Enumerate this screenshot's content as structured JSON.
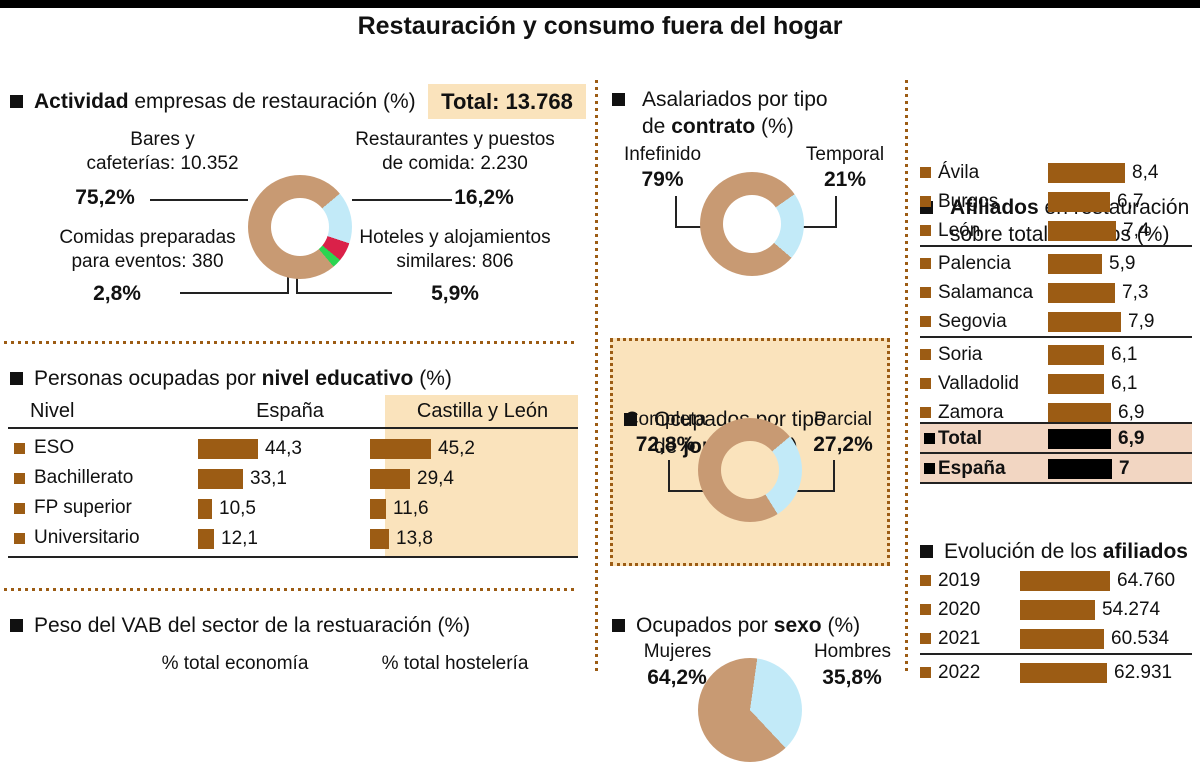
{
  "title": "Restauración y consumo fuera del hogar",
  "colors": {
    "bar_brown": "#9C5C14",
    "donut_tan": "#C89A73",
    "light_blue": "#C2EAF8",
    "red": "#DA2149",
    "green": "#2BD551",
    "cream": "#FAE3BC",
    "pink": "#F2D6C2",
    "black": "#000000"
  },
  "left": {
    "actividad": {
      "header_bold": "Actividad",
      "header_rest": " empresas de restauración (%)",
      "total_label": "Total: 13.768",
      "donut": {
        "from": 50,
        "slices": [
          {
            "name": "Restaurantes y puestos de comida",
            "color": "#C2EAF8",
            "pct": 16.2
          },
          {
            "name": "Hoteles y alojamientos similares",
            "color": "#DA2149",
            "pct": 5.9
          },
          {
            "name": "Comidas preparadas para eventos",
            "color": "#2BD551",
            "pct": 2.8
          },
          {
            "name": "Bares y cafeterías",
            "color": "#C89A73",
            "pct": 75.2
          }
        ]
      },
      "labels": {
        "bares_l1": "Bares y",
        "bares_l2": "cafeterías: 10.352",
        "bares_pct": "75,2%",
        "rest_l1": "Restaurantes y puestos",
        "rest_l2": "de comida: 2.230",
        "rest_pct": "16,2%",
        "comidas_l1": "Comidas preparadas",
        "comidas_l2": "para eventos: 380",
        "comidas_pct": "2,8%",
        "hoteles_l1": "Hoteles y alojamientos",
        "hoteles_l2": "similares: 806",
        "hoteles_pct": "5,9%"
      }
    },
    "educativo": {
      "header_pre": "Personas ocupadas por ",
      "header_bold": "nivel educativo",
      "header_post": " (%)",
      "col_nivel": "Nivel",
      "col_espana": "España",
      "col_cyl": "Castilla y León",
      "rows": [
        {
          "label": "ESO",
          "espana": "44,3",
          "espana_num": 44.3,
          "cyl": "45,2",
          "cyl_num": 45.2
        },
        {
          "label": "Bachillerato",
          "espana": "33,1",
          "espana_num": 33.1,
          "cyl": "29,4",
          "cyl_num": 29.4
        },
        {
          "label": "FP superior",
          "espana": "10,5",
          "espana_num": 10.5,
          "cyl": "11,6",
          "cyl_num": 11.6
        },
        {
          "label": "Universitario",
          "espana": "12,1",
          "espana_num": 12.1,
          "cyl": "13,8",
          "cyl_num": 13.8
        }
      ]
    },
    "vab": {
      "header": "Peso del VAB del sector de la restuaración (%)",
      "col1": "% total economía",
      "col2": "% total hostelería"
    }
  },
  "middle": {
    "contrato": {
      "header_l1": "Asalariados por tipo",
      "header_l2_pre": "de ",
      "header_l2_bold": "contrato",
      "header_l2_post": " (%)",
      "left_label": "Infefinido",
      "left_pct": "79%",
      "right_label": "Temporal",
      "right_pct": "21%",
      "donut": {
        "from": 55,
        "slices": [
          {
            "name": "Temporal",
            "color": "#C2EAF8",
            "pct": 21
          },
          {
            "name": "Infefinido",
            "color": "#C89A73",
            "pct": 79
          }
        ]
      }
    },
    "jornada": {
      "header_l1": "Ocupados por tipo",
      "header_l2_pre": "de ",
      "header_l2_bold": "jornada",
      "header_l2_post": " (%)",
      "left_label": "Completa",
      "left_pct": "72,8%",
      "right_label": "Parcial",
      "right_pct": "27,2%",
      "donut": {
        "from": 50,
        "slices": [
          {
            "name": "Parcial",
            "color": "#C2EAF8",
            "pct": 27.2
          },
          {
            "name": "Completa",
            "color": "#C89A73",
            "pct": 72.8
          }
        ]
      }
    },
    "sexo": {
      "header_pre": "Ocupados por ",
      "header_bold": "sexo",
      "header_post": " (%)",
      "left_label": "Mujeres",
      "left_pct": "64,2%",
      "right_label": "Hombres",
      "right_pct": "35,8%",
      "donut": {
        "from": 8,
        "slices": [
          {
            "name": "Hombres",
            "color": "#C2EAF8",
            "pct": 35.8
          },
          {
            "name": "Mujeres",
            "color": "#C89A73",
            "pct": 64.2
          }
        ]
      }
    }
  },
  "right": {
    "afiliados": {
      "header_l1_bold": "Afiliados",
      "header_l1_post": " en restauración",
      "header_l2": "sobre total afiliados (%)",
      "rows": [
        {
          "label": "Ávila",
          "value": "8,4",
          "num": 8.4
        },
        {
          "label": "Burgos",
          "value": "6,7",
          "num": 6.7
        },
        {
          "label": "León",
          "value": "7,4",
          "num": 7.4
        },
        {
          "label": "Palencia",
          "value": "5,9",
          "num": 5.9
        },
        {
          "label": "Salamanca",
          "value": "7,3",
          "num": 7.3
        },
        {
          "label": "Segovia",
          "value": "7,9",
          "num": 7.9
        },
        {
          "label": "Soria",
          "value": "6,1",
          "num": 6.1
        },
        {
          "label": "Valladolid",
          "value": "6,1",
          "num": 6.1
        },
        {
          "label": "Zamora",
          "value": "6,9",
          "num": 6.9
        }
      ],
      "total_row": {
        "label": "Total",
        "value": "6,9",
        "num": 6.9
      },
      "espana_row": {
        "label": "España",
        "value": "7",
        "num": 7
      }
    },
    "evolucion": {
      "header_pre": "Evolución de los ",
      "header_bold": "afiliados",
      "rows": [
        {
          "label": "2019",
          "value": "64.760",
          "num": 64760
        },
        {
          "label": "2020",
          "value": "54.274",
          "num": 54274
        },
        {
          "label": "2021",
          "value": "60.534",
          "num": 60534
        },
        {
          "label": "2022",
          "value": "62.931",
          "num": 62931
        }
      ]
    }
  },
  "chart_data": [
    {
      "type": "pie",
      "title": "Actividad empresas de restauración (%)",
      "total": 13768,
      "categories": [
        "Bares y cafeterías",
        "Restaurantes y puestos de comida",
        "Hoteles y alojamientos similares",
        "Comidas preparadas para eventos"
      ],
      "values": [
        75.2,
        16.2,
        5.9,
        2.8
      ],
      "counts": [
        10352,
        2230,
        806,
        380
      ],
      "colors": [
        "#C89A73",
        "#C2EAF8",
        "#DA2149",
        "#2BD551"
      ]
    },
    {
      "type": "bar",
      "title": "Personas ocupadas por nivel educativo (%)",
      "categories": [
        "ESO",
        "Bachillerato",
        "FP superior",
        "Universitario"
      ],
      "series": [
        {
          "name": "España",
          "values": [
            44.3,
            33.1,
            10.5,
            12.1
          ]
        },
        {
          "name": "Castilla y León",
          "values": [
            45.2,
            29.4,
            11.6,
            13.8
          ]
        }
      ]
    },
    {
      "type": "pie",
      "title": "Asalariados por tipo de contrato (%)",
      "categories": [
        "Infefinido",
        "Temporal"
      ],
      "values": [
        79,
        21
      ]
    },
    {
      "type": "pie",
      "title": "Ocupados por tipo de jornada (%)",
      "categories": [
        "Completa",
        "Parcial"
      ],
      "values": [
        72.8,
        27.2
      ]
    },
    {
      "type": "pie",
      "title": "Ocupados por sexo (%)",
      "categories": [
        "Mujeres",
        "Hombres"
      ],
      "values": [
        64.2,
        35.8
      ]
    },
    {
      "type": "bar",
      "title": "Afiliados en restauración sobre total afiliados (%)",
      "categories": [
        "Ávila",
        "Burgos",
        "León",
        "Palencia",
        "Salamanca",
        "Segovia",
        "Soria",
        "Valladolid",
        "Zamora",
        "Total",
        "España"
      ],
      "values": [
        8.4,
        6.7,
        7.4,
        5.9,
        7.3,
        7.9,
        6.1,
        6.1,
        6.9,
        6.9,
        7
      ]
    },
    {
      "type": "bar",
      "title": "Evolución de los afiliados",
      "categories": [
        "2019",
        "2020",
        "2021",
        "2022"
      ],
      "values": [
        64760,
        54274,
        60534,
        62931
      ]
    },
    {
      "type": "table",
      "title": "Peso del VAB del sector de la restuaración (%)",
      "columns": [
        "% total economía",
        "% total hostelería"
      ],
      "values": []
    }
  ]
}
